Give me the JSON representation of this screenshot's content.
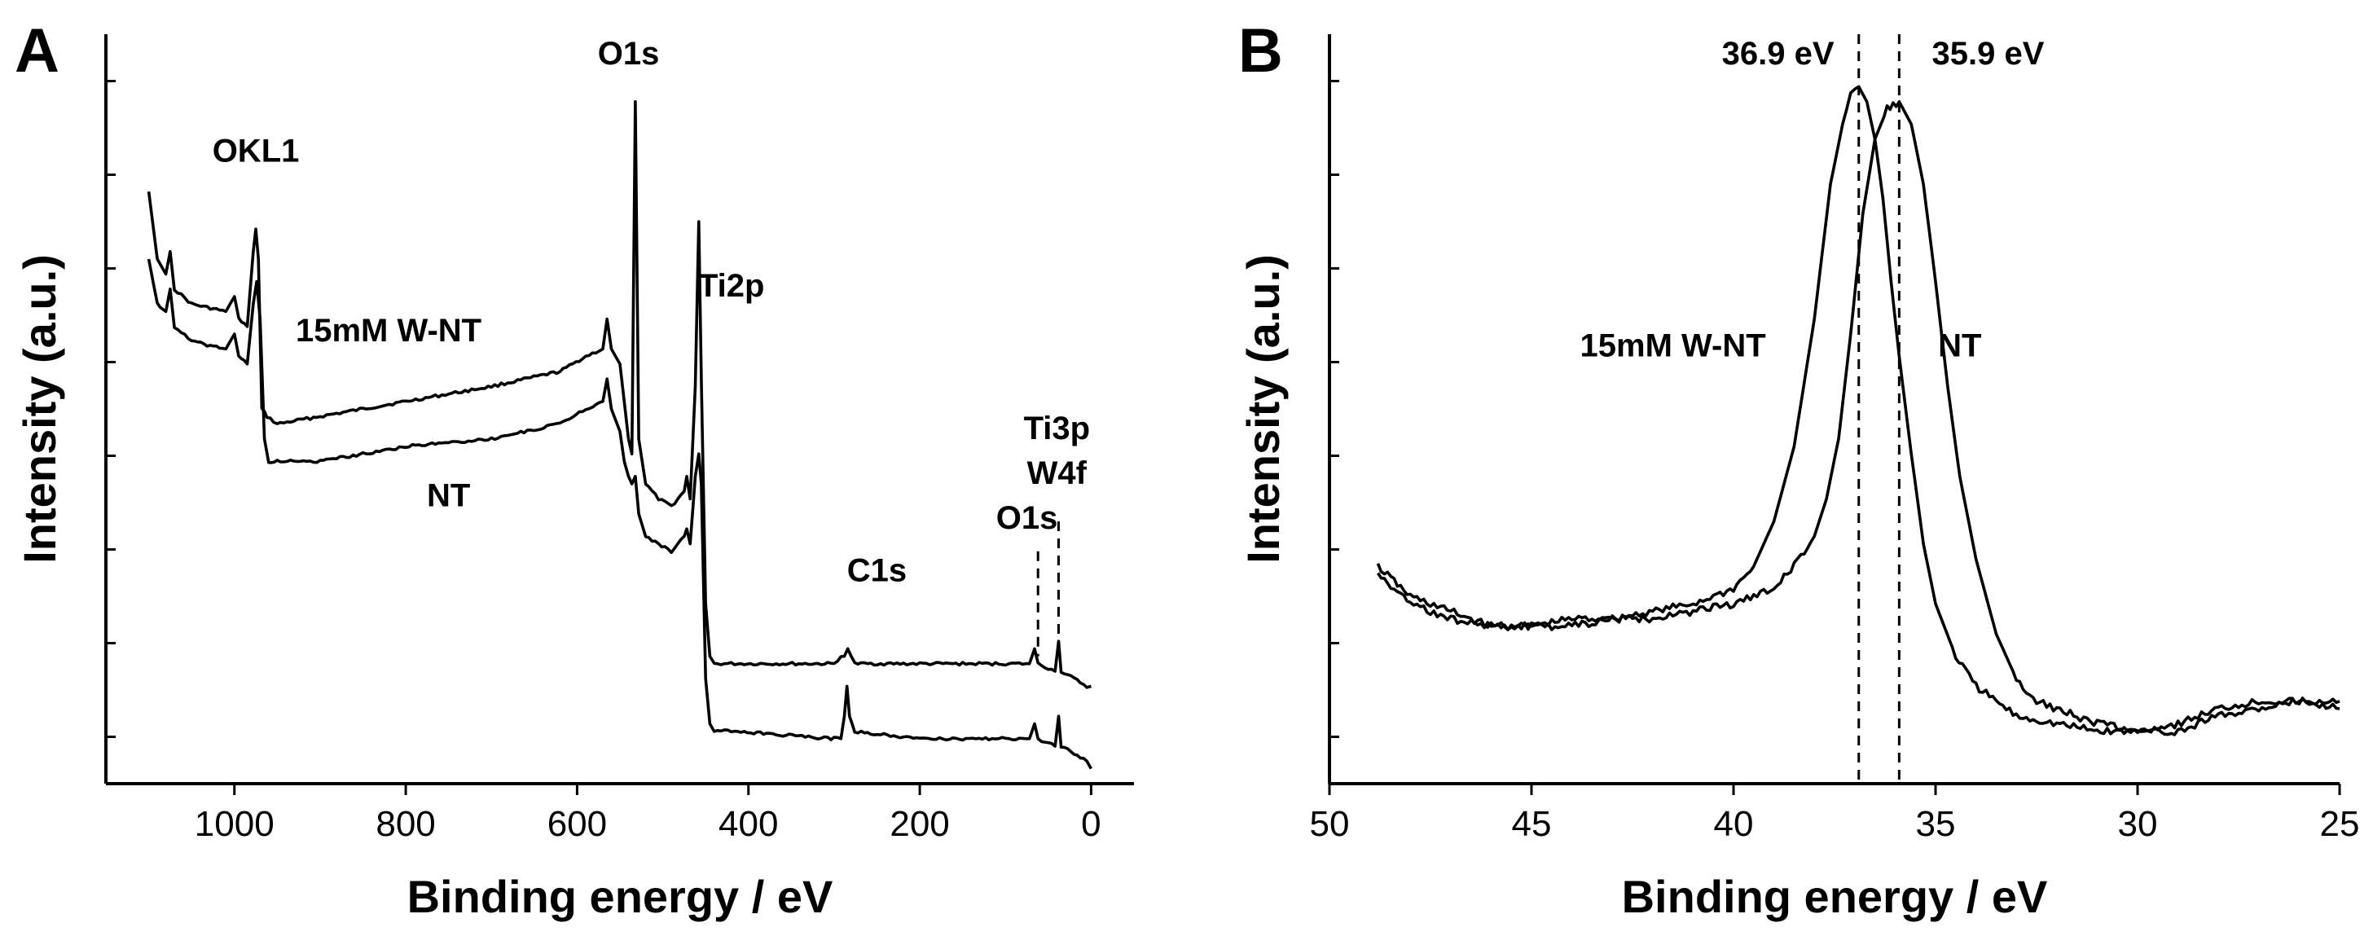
{
  "chart_data": [
    {
      "panel": "A",
      "type": "line",
      "title": "",
      "xlabel": "Binding energy / eV",
      "ylabel": "Intensity (a.u.)",
      "xlim": [
        1150,
        -50
      ],
      "ylim": [
        0,
        100
      ],
      "x_ticks": [
        1000,
        800,
        600,
        400,
        200,
        0
      ],
      "x_tick_labels": [
        "1000",
        "800",
        "600",
        "400",
        "200",
        "0"
      ],
      "y_tick_count": 8,
      "series": [
        {
          "name": "15mM W-NT",
          "label": "15mM W-NT",
          "points": [
            [
              1100,
              79
            ],
            [
              1090,
              70
            ],
            [
              1080,
              68
            ],
            [
              1075,
              71
            ],
            [
              1070,
              66
            ],
            [
              1050,
              64
            ],
            [
              1010,
              63
            ],
            [
              1000,
              65
            ],
            [
              995,
              62
            ],
            [
              985,
              61
            ],
            [
              978,
              71
            ],
            [
              975,
              74
            ],
            [
              972,
              70
            ],
            [
              968,
              50
            ],
            [
              962,
              49
            ],
            [
              950,
              48
            ],
            [
              900,
              49
            ],
            [
              800,
              51
            ],
            [
              700,
              53
            ],
            [
              620,
              55
            ],
            [
              590,
              57
            ],
            [
              570,
              58
            ],
            [
              565,
              62
            ],
            [
              560,
              58
            ],
            [
              550,
              56
            ],
            [
              545,
              51
            ],
            [
              540,
              46
            ],
            [
              536,
              44
            ],
            [
              532,
              91
            ],
            [
              528,
              46
            ],
            [
              520,
              40
            ],
            [
              505,
              38
            ],
            [
              490,
              37
            ],
            [
              475,
              39
            ],
            [
              472,
              41
            ],
            [
              468,
              38
            ],
            [
              462,
              53
            ],
            [
              458,
              75
            ],
            [
              455,
              54
            ],
            [
              450,
              24
            ],
            [
              445,
              17
            ],
            [
              440,
              16
            ],
            [
              420,
              16
            ],
            [
              300,
              16
            ],
            [
              292,
              17
            ],
            [
              288,
              17
            ],
            [
              284,
              18
            ],
            [
              280,
              17
            ],
            [
              276,
              16
            ],
            [
              200,
              16
            ],
            [
              100,
              16
            ],
            [
              72,
              16
            ],
            [
              66,
              18
            ],
            [
              62,
              16
            ],
            [
              42,
              15
            ],
            [
              38,
              19
            ],
            [
              35,
              15
            ],
            [
              20,
              14
            ],
            [
              5,
              13
            ],
            [
              0,
              13
            ]
          ]
        },
        {
          "name": "NT",
          "label": "NT",
          "points": [
            [
              1100,
              70
            ],
            [
              1090,
              64
            ],
            [
              1080,
              63
            ],
            [
              1075,
              66
            ],
            [
              1070,
              61
            ],
            [
              1050,
              59
            ],
            [
              1010,
              58
            ],
            [
              1000,
              60
            ],
            [
              995,
              57
            ],
            [
              985,
              56
            ],
            [
              978,
              64
            ],
            [
              974,
              67
            ],
            [
              970,
              62
            ],
            [
              965,
              46
            ],
            [
              960,
              43
            ],
            [
              950,
              43
            ],
            [
              900,
              43
            ],
            [
              800,
              45
            ],
            [
              700,
              46
            ],
            [
              620,
              48
            ],
            [
              590,
              50
            ],
            [
              570,
              51
            ],
            [
              565,
              54
            ],
            [
              560,
              50
            ],
            [
              550,
              47
            ],
            [
              545,
              43
            ],
            [
              540,
              41
            ],
            [
              536,
              40
            ],
            [
              532,
              41
            ],
            [
              528,
              36
            ],
            [
              520,
              33
            ],
            [
              505,
              32
            ],
            [
              490,
              31
            ],
            [
              475,
              33
            ],
            [
              472,
              34
            ],
            [
              468,
              32
            ],
            [
              462,
              41
            ],
            [
              458,
              44
            ],
            [
              455,
              40
            ],
            [
              450,
              14
            ],
            [
              445,
              8
            ],
            [
              440,
              7
            ],
            [
              420,
              7
            ],
            [
              300,
              6
            ],
            [
              292,
              6
            ],
            [
              288,
              9
            ],
            [
              285,
              13
            ],
            [
              282,
              9
            ],
            [
              276,
              7
            ],
            [
              200,
              6
            ],
            [
              100,
              6
            ],
            [
              72,
              6
            ],
            [
              66,
              8
            ],
            [
              62,
              6
            ],
            [
              42,
              5
            ],
            [
              38,
              9
            ],
            [
              35,
              5
            ],
            [
              20,
              4
            ],
            [
              5,
              3
            ],
            [
              0,
              2
            ]
          ]
        }
      ],
      "annotations": [
        {
          "text": "OKL1",
          "x": 975,
          "y": 83
        },
        {
          "text": "O1s",
          "x": 540,
          "y": 96
        },
        {
          "text": "Ti2p",
          "x": 420,
          "y": 65
        },
        {
          "text": "15mM W-NT",
          "x": 820,
          "y": 59
        },
        {
          "text": "NT",
          "x": 750,
          "y": 37
        },
        {
          "text": "C1s",
          "x": 250,
          "y": 27
        },
        {
          "text": "O1s",
          "x": 75,
          "y": 34
        },
        {
          "text": "Ti3p",
          "x": 40,
          "y": 46
        },
        {
          "text": "W4f",
          "x": 40,
          "y": 40
        }
      ],
      "reference_lines": [
        {
          "x": 62,
          "y_from": 17,
          "y_to": 31
        },
        {
          "x": 38,
          "y_from": 19,
          "y_to": 35
        }
      ]
    },
    {
      "panel": "B",
      "type": "line",
      "title": "",
      "xlabel": "Binding energy / eV",
      "ylabel": "Intensity (a.u.)",
      "xlim": [
        50,
        25
      ],
      "ylim": [
        0,
        100
      ],
      "x_ticks": [
        50,
        45,
        40,
        35,
        30,
        25
      ],
      "x_tick_labels": [
        "50",
        "45",
        "40",
        "35",
        "30",
        "25"
      ],
      "y_tick_count": 8,
      "series": [
        {
          "name": "15mM W-NT",
          "label": "15mM W-NT",
          "points": [
            [
              48.8,
              29
            ],
            [
              48,
              25
            ],
            [
              47,
              23
            ],
            [
              46,
              21
            ],
            [
              45,
              21
            ],
            [
              44,
              22
            ],
            [
              43,
              22
            ],
            [
              42,
              23
            ],
            [
              41,
              24
            ],
            [
              40,
              26
            ],
            [
              39.5,
              29
            ],
            [
              39,
              35
            ],
            [
              38.5,
              45
            ],
            [
              38,
              62
            ],
            [
              37.6,
              80
            ],
            [
              37.3,
              88
            ],
            [
              37.1,
              92
            ],
            [
              36.9,
              93
            ],
            [
              36.7,
              91
            ],
            [
              36.5,
              86
            ],
            [
              36.3,
              78
            ],
            [
              36.1,
              67
            ],
            [
              35.9,
              57
            ],
            [
              35.6,
              44
            ],
            [
              35.3,
              32
            ],
            [
              35,
              24
            ],
            [
              34.5,
              17
            ],
            [
              34,
              13
            ],
            [
              33.5,
              11
            ],
            [
              33,
              9
            ],
            [
              32,
              8
            ],
            [
              31,
              7
            ],
            [
              30,
              7
            ],
            [
              29,
              8
            ],
            [
              28,
              10
            ],
            [
              27,
              11
            ],
            [
              26,
              11
            ],
            [
              25,
              10
            ]
          ]
        },
        {
          "name": "NT",
          "label": "NT",
          "points": [
            [
              48.8,
              28
            ],
            [
              48,
              24
            ],
            [
              47,
              22
            ],
            [
              46,
              21
            ],
            [
              45,
              21
            ],
            [
              44,
              21
            ],
            [
              43,
              22
            ],
            [
              42,
              22
            ],
            [
              41,
              23
            ],
            [
              40,
              24
            ],
            [
              39.5,
              25
            ],
            [
              39,
              26
            ],
            [
              38.5,
              29
            ],
            [
              38,
              33
            ],
            [
              37.7,
              38
            ],
            [
              37.4,
              46
            ],
            [
              37.1,
              60
            ],
            [
              36.8,
              76
            ],
            [
              36.5,
              86
            ],
            [
              36.2,
              90
            ],
            [
              35.9,
              91
            ],
            [
              35.6,
              88
            ],
            [
              35.3,
              80
            ],
            [
              35,
              67
            ],
            [
              34.7,
              53
            ],
            [
              34.4,
              41
            ],
            [
              34,
              30
            ],
            [
              33.5,
              20
            ],
            [
              33,
              14
            ],
            [
              32.5,
              11
            ],
            [
              32,
              10
            ],
            [
              31,
              8
            ],
            [
              30,
              7
            ],
            [
              29,
              7
            ],
            [
              28,
              9
            ],
            [
              27,
              10
            ],
            [
              26,
              11
            ],
            [
              25,
              11
            ]
          ]
        }
      ],
      "annotations": [
        {
          "text": "36.9 eV",
          "x": 38.9,
          "y": 96
        },
        {
          "text": "35.9 eV",
          "x": 33.7,
          "y": 96
        },
        {
          "text": "15mM W-NT",
          "x": 41.5,
          "y": 57
        },
        {
          "text": "NT",
          "x": 34.4,
          "y": 57
        }
      ],
      "reference_lines": [
        {
          "x": 36.9,
          "y_from": 0,
          "y_to": 100
        },
        {
          "x": 35.9,
          "y_from": 0,
          "y_to": 100
        }
      ]
    }
  ],
  "panels": {
    "a": {
      "letter": "A"
    },
    "b": {
      "letter": "B"
    }
  }
}
